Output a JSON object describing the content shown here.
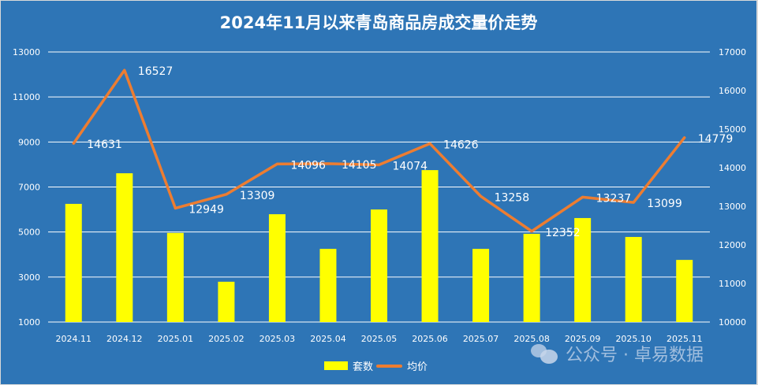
{
  "title": "2024年11月以来青岛商品房成交量价走势",
  "legend": {
    "bar_label": "套数",
    "line_label": "均价"
  },
  "watermark": {
    "icon": "wechat-icon",
    "text": "公众号 · 卓易数据"
  },
  "colors": {
    "background": "#2e75b6",
    "bar": "#ffff00",
    "line": "#ed7d31",
    "gridline": "#ffffff",
    "text": "#ffffff"
  },
  "chart_data": {
    "type": "bar+line",
    "title": "2024年11月以来青岛商品房成交量价走势",
    "categories": [
      "2024.11",
      "2024.12",
      "2025.01",
      "2025.02",
      "2025.03",
      "2025.04",
      "2025.05",
      "2025.06",
      "2025.07",
      "2025.08",
      "2025.09",
      "2025.10",
      "2025.11"
    ],
    "series": [
      {
        "name": "套数",
        "type": "bar",
        "axis": "left",
        "values": [
          6250,
          7610,
          4960,
          2790,
          5790,
          4250,
          6000,
          7750,
          4250,
          4920,
          5620,
          4780,
          3760
        ]
      },
      {
        "name": "均价",
        "type": "line",
        "axis": "right",
        "values": [
          14631,
          16527,
          12949,
          13309,
          14096,
          14105,
          14074,
          14626,
          13258,
          12352,
          13237,
          13099,
          14779
        ],
        "data_labels": true
      }
    ],
    "y_left": {
      "ylim": [
        1000,
        13000
      ],
      "ticks": [
        1000,
        3000,
        5000,
        7000,
        9000,
        11000,
        13000
      ]
    },
    "y_right": {
      "ylim": [
        10000,
        17000
      ],
      "ticks": [
        10000,
        11000,
        12000,
        13000,
        14000,
        15000,
        16000,
        17000
      ]
    },
    "grid": true,
    "legend_position": "bottom"
  }
}
